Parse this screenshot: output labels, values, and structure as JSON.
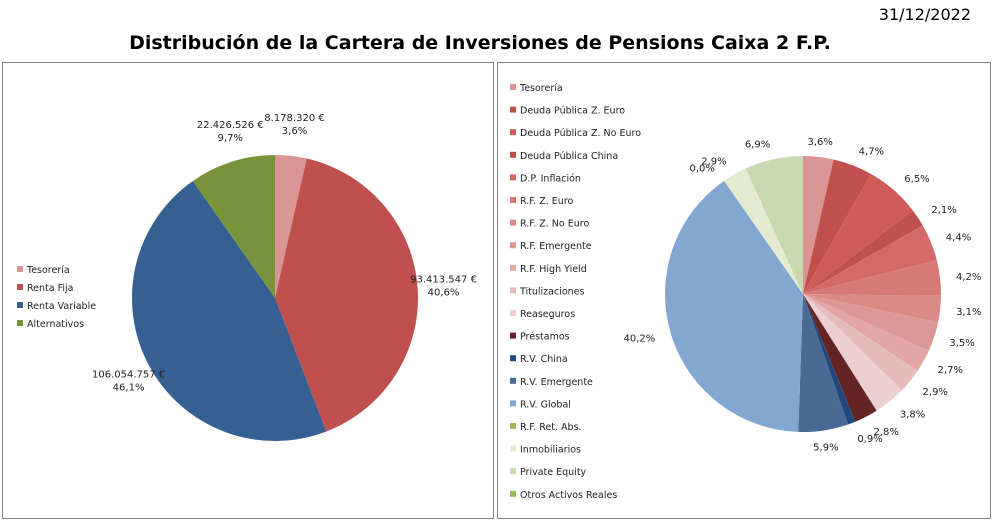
{
  "header": {
    "date": "31/12/2022",
    "title": "Distribución de la Cartera de Inversiones de Pensions Caixa 2 F.P."
  },
  "chart_data": [
    {
      "type": "pie",
      "title": "",
      "legend_position": "left",
      "categories": [
        "Tesorería",
        "Renta Fija",
        "Renta Variable",
        "Alternativos"
      ],
      "values": [
        8178320,
        93413547,
        106054757,
        22426526
      ],
      "value_labels": [
        "8.178.320 €",
        "93.413.547 €",
        "106.054.757 €",
        "22.426.526 €"
      ],
      "percent_labels": [
        "3,6%",
        "40,6%",
        "46,1%",
        "9,7%"
      ],
      "colors": [
        "#d99694",
        "#c0504d",
        "#376092",
        "#77933c"
      ]
    },
    {
      "type": "pie",
      "title": "",
      "legend_position": "top-right",
      "categories": [
        "Tesorería",
        "Deuda Pública Z. Euro",
        "Deuda Pública Z. No Euro",
        "Deuda Pública China",
        "D.P. Inflación",
        "R.F. Z. Euro",
        "R.F. Z. No Euro",
        "R.F. Emergente",
        "R.F. High Yield",
        "Titulizaciones",
        "Reaseguros",
        "Préstamos",
        "R.V. China",
        "R.V. Emergente",
        "R.V. Global",
        "R.F. Ret. Abs.",
        "Inmobiliarios",
        "Private Equity",
        "Otros Activos Reales"
      ],
      "values": [
        3.6,
        4.7,
        6.5,
        2.1,
        4.4,
        4.2,
        3.1,
        3.5,
        2.7,
        2.9,
        3.8,
        2.8,
        0.9,
        5.9,
        40.2,
        0.0,
        2.9,
        6.9,
        0.0
      ],
      "labels": [
        "3,6%",
        "4,7%",
        "6,5%",
        "2,1%",
        "4,4%",
        "4,2%",
        "3,1%",
        "3,5%",
        "2,7%",
        "2,9%",
        "3,8%",
        "2,8%",
        "0,9%",
        "5,9%",
        "40,2%",
        "0,0%",
        "2,9%",
        "6,9%",
        ""
      ],
      "colors": [
        "#d99694",
        "#c0504d",
        "#cd5c59",
        "#c0504d",
        "#d46a67",
        "#d67a77",
        "#da8b88",
        "#dc9896",
        "#e2a6a4",
        "#e6bcbb",
        "#ecd0cf",
        "#632523",
        "#1f497d",
        "#4a6a96",
        "#84a7d2",
        "#9bbb59",
        "#e4ecd0",
        "#c8d8b0",
        "#9bbb59"
      ]
    }
  ]
}
